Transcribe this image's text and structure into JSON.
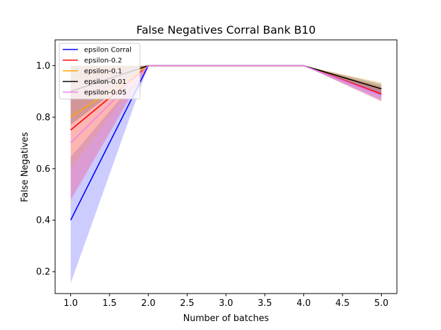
{
  "chart_data": {
    "type": "line",
    "title": "False Negatives Corral Bank B10",
    "xlabel": "Number of batches",
    "ylabel": "False Negatives",
    "xlim": [
      0.8,
      5.2
    ],
    "ylim": [
      0.115,
      1.1
    ],
    "xticks": [
      "1.0",
      "1.5",
      "2.0",
      "2.5",
      "3.0",
      "3.5",
      "4.0",
      "4.5",
      "5.0"
    ],
    "yticks": [
      "0.2",
      "0.4",
      "0.6",
      "0.8",
      "1.0"
    ],
    "grid": false,
    "legend_position": "top-left",
    "x": [
      1,
      2,
      3,
      4,
      5
    ],
    "series": [
      {
        "name": "epsilon Corral",
        "color": "#0000ff",
        "values": [
          0.4,
          1.0,
          1.0,
          1.0,
          0.885
        ],
        "lower": [
          0.155,
          1.0,
          1.0,
          1.0,
          0.865
        ],
        "upper": [
          0.645,
          1.0,
          1.0,
          1.0,
          0.905
        ],
        "band_alpha": 0.2
      },
      {
        "name": "epsilon-0.2",
        "color": "#ff0000",
        "values": [
          0.75,
          1.0,
          1.0,
          1.0,
          0.89
        ],
        "lower": [
          0.48,
          1.0,
          1.0,
          1.0,
          0.86
        ],
        "upper": [
          1.0,
          1.0,
          1.0,
          1.0,
          0.92
        ],
        "band_alpha": 0.2
      },
      {
        "name": "epsilon-0.1",
        "color": "#ffa500",
        "values": [
          0.8,
          1.0,
          1.0,
          1.0,
          0.91
        ],
        "lower": [
          0.6,
          1.0,
          1.0,
          1.0,
          0.885
        ],
        "upper": [
          1.0,
          1.0,
          1.0,
          1.0,
          0.935
        ],
        "band_alpha": 0.2
      },
      {
        "name": "epsilon-0.01",
        "color": "#000000",
        "values": [
          0.9,
          1.0,
          1.0,
          1.0,
          0.91
        ],
        "lower": [
          0.77,
          1.0,
          1.0,
          1.0,
          0.89
        ],
        "upper": [
          1.0,
          1.0,
          1.0,
          1.0,
          0.93
        ],
        "band_alpha": 0.2
      },
      {
        "name": "epsilon-0.05",
        "color": "#ee82ee",
        "values": [
          0.7,
          1.0,
          1.0,
          1.0,
          0.885
        ],
        "lower": [
          0.47,
          1.0,
          1.0,
          1.0,
          0.865
        ],
        "upper": [
          0.93,
          1.0,
          1.0,
          1.0,
          0.905
        ],
        "band_alpha": 0.2
      }
    ]
  }
}
